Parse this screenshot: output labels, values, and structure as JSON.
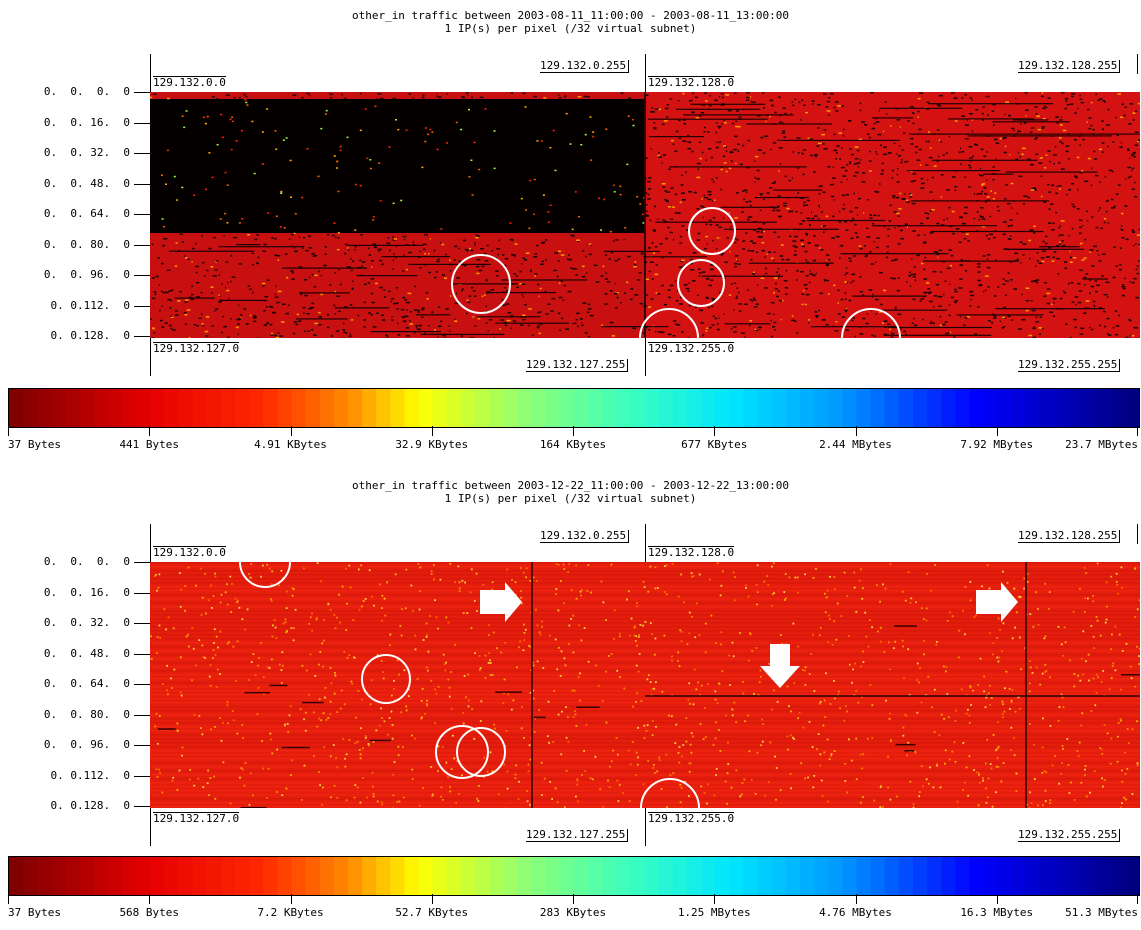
{
  "panels": [
    {
      "title_line1": "other_in traffic between 2003-08-11_11:00:00 - 2003-08-11_13:00:00",
      "title_line2": "1 IP(s) per pixel (/32 virtual subnet)",
      "row_labels": [
        "0.  0.  0.  0",
        "0.  0. 16.  0",
        "0.  0. 32.  0",
        "0.  0. 48.  0",
        "0.  0. 64.  0",
        "0.  0. 80.  0",
        "0.  0. 96.  0",
        "0. 0.112.  0",
        "0. 0.128.  0"
      ],
      "corner_labels": {
        "left_top_start": "129.132.0.0",
        "left_top_end": "129.132.0.255",
        "left_bottom_start": "129.132.127.0",
        "left_bottom_end": "129.132.127.255",
        "right_top_start": "129.132.128.0",
        "right_top_end": "129.132.128.255",
        "right_bottom_start": "129.132.255.0",
        "right_bottom_end": "129.132.255.255"
      },
      "colorbar_ticks": [
        "37 Bytes",
        "441 Bytes",
        "4.91 KBytes",
        "32.9 KBytes",
        "164 KBytes",
        "677 KBytes",
        "2.44 MBytes",
        "7.92 MBytes",
        "23.7 MBytes"
      ]
    },
    {
      "title_line1": "other_in traffic between 2003-12-22_11:00:00 - 2003-12-22_13:00:00",
      "title_line2": "1 IP(s) per pixel (/32 virtual subnet)",
      "row_labels": [
        "0.  0.  0.  0",
        "0.  0. 16.  0",
        "0.  0. 32.  0",
        "0.  0. 48.  0",
        "0.  0. 64.  0",
        "0.  0. 80.  0",
        "0.  0. 96.  0",
        "0. 0.112.  0",
        "0. 0.128.  0"
      ],
      "corner_labels": {
        "left_top_start": "129.132.0.0",
        "left_top_end": "129.132.0.255",
        "left_bottom_start": "129.132.127.0",
        "left_bottom_end": "129.132.127.255",
        "right_top_start": "129.132.128.0",
        "right_top_end": "129.132.128.255",
        "right_bottom_start": "129.132.255.0",
        "right_bottom_end": "129.132.255.255"
      },
      "colorbar_ticks": [
        "37 Bytes",
        "568 Bytes",
        "7.2 KBytes",
        "52.7 KBytes",
        "283 KBytes",
        "1.25 MBytes",
        "4.76 MBytes",
        "16.3 MBytes",
        "51.3 MBytes"
      ]
    }
  ],
  "chart_data": [
    {
      "type": "heatmap",
      "title": "other_in traffic between 2003-08-11_11:00:00 - 2003-08-11_13:00:00",
      "subtitle": "1 IP(s) per pixel (/32 virtual subnet)",
      "x_range": [
        "129.132.0.0",
        "129.132.255.255"
      ],
      "scale": "log",
      "colorbar_ticks": [
        "37 Bytes",
        "441 Bytes",
        "4.91 KBytes",
        "32.9 KBytes",
        "164 KBytes",
        "677 KBytes",
        "2.44 MBytes",
        "7.92 MBytes",
        "23.7 MBytes"
      ],
      "regions": [
        {
          "name": "129.132.0.0-129.132.79.255",
          "fill": "mostly empty",
          "color": "#000000"
        },
        {
          "name": "129.132.80.0-129.132.127.255",
          "fill": "dense",
          "color": "#dd1111"
        },
        {
          "name": "129.132.128.0-129.132.255.255",
          "fill": "dense",
          "color": "#dd1111"
        }
      ]
    },
    {
      "type": "heatmap",
      "title": "other_in traffic between 2003-12-22_11:00:00 - 2003-12-22_13:00:00",
      "subtitle": "1 IP(s) per pixel (/32 virtual subnet)",
      "x_range": [
        "129.132.0.0",
        "129.132.255.255"
      ],
      "scale": "log",
      "colorbar_ticks": [
        "37 Bytes",
        "568 Bytes",
        "7.2 KBytes",
        "52.7 KBytes",
        "283 KBytes",
        "1.25 MBytes",
        "4.76 MBytes",
        "16.3 MBytes",
        "51.3 MBytes"
      ],
      "regions": [
        {
          "name": "129.132.0.0-129.132.255.255",
          "fill": "dense",
          "color": "#e81c0c"
        }
      ]
    }
  ],
  "colors": {
    "panel1_dark": "#000000",
    "panel1_red": "#d81010",
    "panel2_red": "#e81e0c",
    "annotation": "#ffffff"
  }
}
